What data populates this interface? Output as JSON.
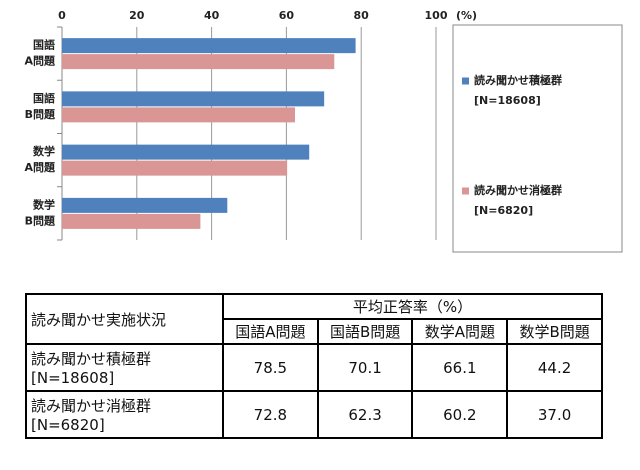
{
  "chart_data": {
    "type": "bar",
    "orientation": "horizontal",
    "categories": [
      [
        "国語",
        "A問題"
      ],
      [
        "国語",
        "B問題"
      ],
      [
        "数学",
        "A問題"
      ],
      [
        "数学",
        "B問題"
      ]
    ],
    "series": [
      {
        "name": "読み聞かせ積極群",
        "note": "[N=18608]",
        "color": "#4f81bd",
        "values": [
          78.5,
          70.1,
          66.1,
          44.2
        ]
      },
      {
        "name": "読み聞かせ消極群",
        "note": "[N=6820]",
        "color": "#d99694",
        "values": [
          72.8,
          62.3,
          60.2,
          37.0
        ]
      }
    ],
    "xlim": [
      0,
      100
    ],
    "xticks": [
      0,
      20,
      40,
      60,
      80,
      100
    ],
    "x_unit": "(%)",
    "grid": true
  },
  "table": {
    "header": [
      "読み聞かせ実施状況",
      "平均正答率（%）"
    ],
    "columns": [
      "国語A問題",
      "国語B問題",
      "数学A問題",
      "数学B問題"
    ],
    "rows": [
      {
        "label": "読み聞かせ積極群",
        "note": "[N=18608]",
        "values": [
          "78.5",
          "70.1",
          "66.1",
          "44.2"
        ]
      },
      {
        "label": "読み聞かせ消極群",
        "note": "[N=6820]",
        "values": [
          "72.8",
          "62.3",
          "60.2",
          "37.0"
        ]
      }
    ]
  }
}
